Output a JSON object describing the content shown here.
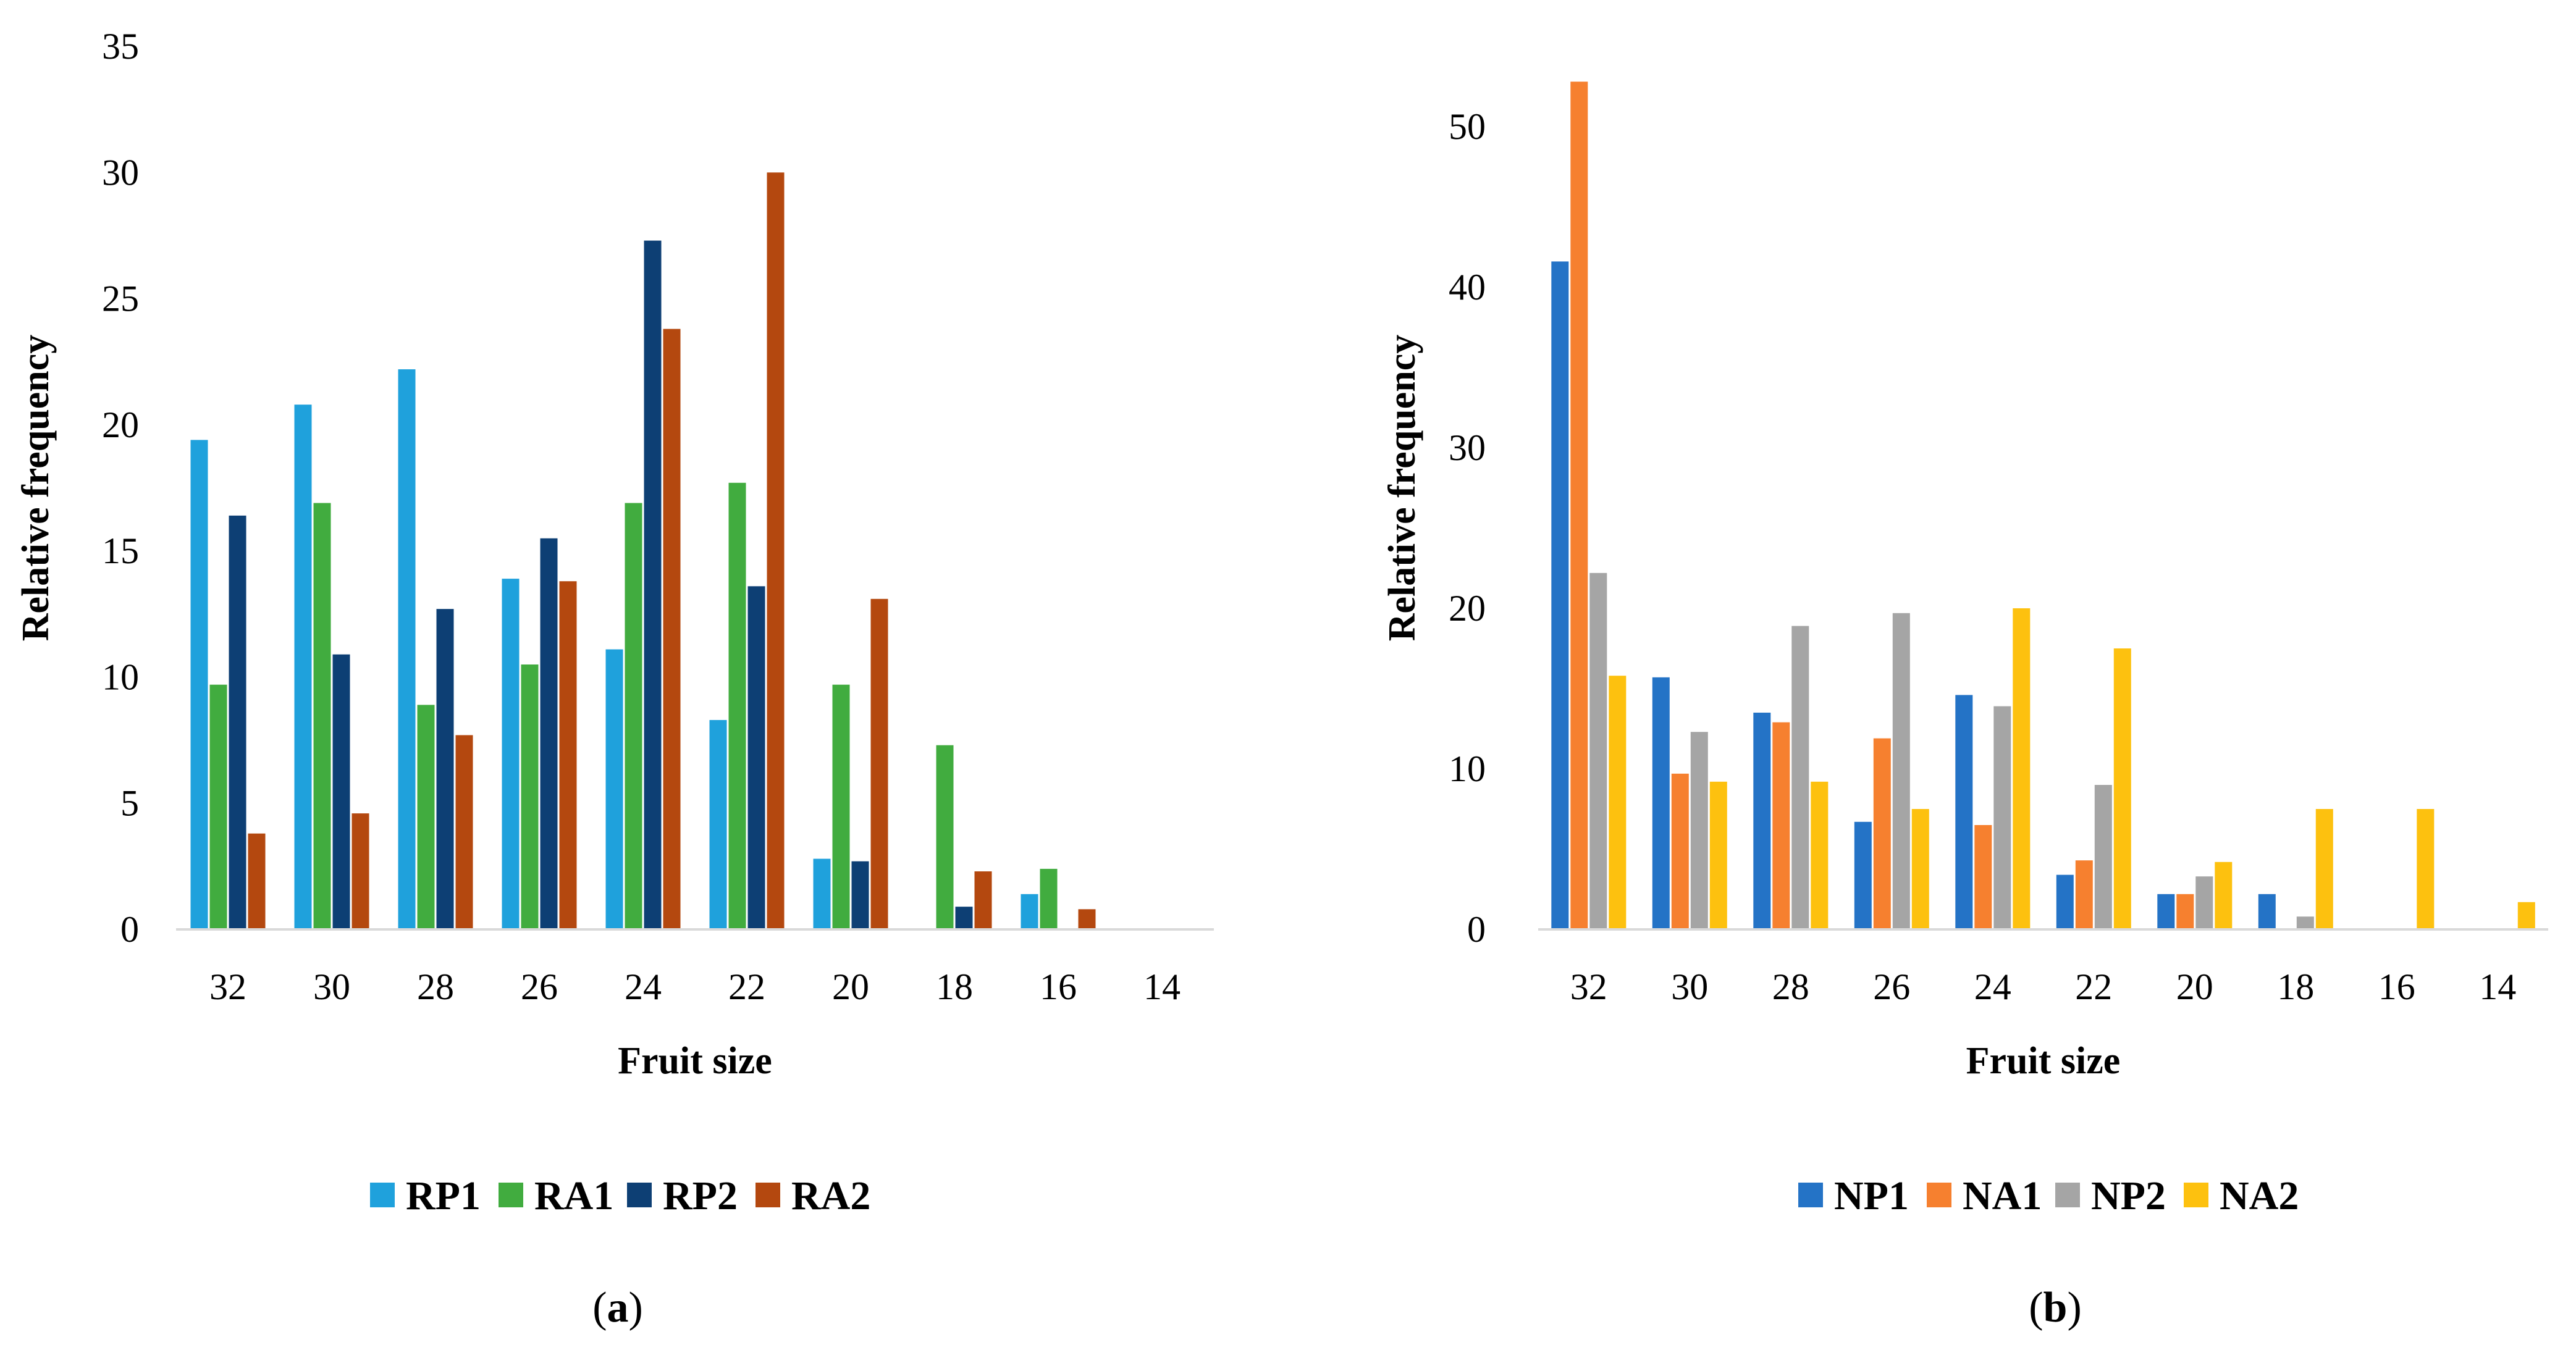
{
  "chart_data": [
    {
      "type": "bar",
      "panel_label": "a",
      "xlabel": "Fruit size",
      "ylabel": "Relative frequency",
      "ylim": [
        0,
        35
      ],
      "yticks": [
        0,
        5,
        10,
        15,
        20,
        25,
        30,
        35
      ],
      "grid": false,
      "legend_position": "bottom",
      "categories": [
        "32",
        "30",
        "28",
        "26",
        "24",
        "22",
        "20",
        "18",
        "16",
        "14"
      ],
      "series": [
        {
          "name": "RP1",
          "color": "#1fa1dc",
          "values": [
            19.4,
            20.8,
            22.2,
            13.9,
            11.1,
            8.3,
            2.8,
            0,
            1.4,
            0
          ]
        },
        {
          "name": "RA1",
          "color": "#41ac3f",
          "values": [
            9.7,
            16.9,
            8.9,
            10.5,
            16.9,
            17.7,
            9.7,
            7.3,
            2.4,
            0
          ]
        },
        {
          "name": "RP2",
          "color": "#0d3f74",
          "values": [
            16.4,
            10.9,
            12.7,
            15.5,
            27.3,
            13.6,
            2.7,
            0.9,
            0,
            0
          ]
        },
        {
          "name": "RA2",
          "color": "#b4480f",
          "values": [
            3.8,
            4.6,
            7.7,
            13.8,
            23.8,
            30.0,
            13.1,
            2.3,
            0.8,
            0
          ]
        }
      ]
    },
    {
      "type": "bar",
      "panel_label": "b",
      "xlabel": "Fruit size",
      "ylabel": "Relative frequency",
      "ylim": [
        0,
        55
      ],
      "yticks": [
        0,
        10,
        20,
        30,
        40,
        50
      ],
      "grid": false,
      "legend_position": "bottom",
      "categories": [
        "32",
        "30",
        "28",
        "26",
        "24",
        "22",
        "20",
        "18",
        "16",
        "14"
      ],
      "series": [
        {
          "name": "NP1",
          "color": "#2473c6",
          "values": [
            41.6,
            15.7,
            13.5,
            6.7,
            14.6,
            3.4,
            2.2,
            2.2,
            0,
            0
          ]
        },
        {
          "name": "NA1",
          "color": "#f6802f",
          "values": [
            52.8,
            9.7,
            12.9,
            11.9,
            6.5,
            4.3,
            2.2,
            0,
            0,
            0
          ]
        },
        {
          "name": "NP2",
          "color": "#a5a5a5",
          "values": [
            22.2,
            12.3,
            18.9,
            19.7,
            13.9,
            9.0,
            3.3,
            0.8,
            0,
            0
          ]
        },
        {
          "name": "NA2",
          "color": "#fdc10f",
          "values": [
            15.8,
            9.2,
            9.2,
            7.5,
            20.0,
            17.5,
            4.2,
            7.5,
            7.5,
            1.7
          ]
        }
      ]
    }
  ]
}
